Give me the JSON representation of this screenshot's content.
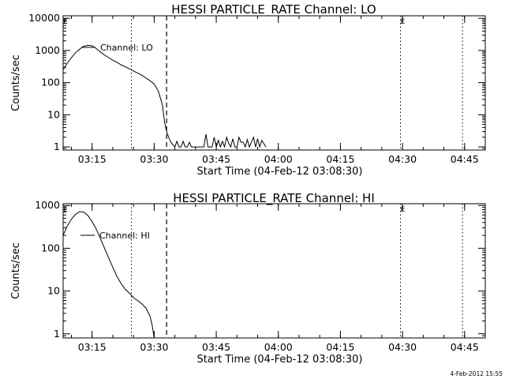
{
  "footer": {
    "timestamp": "4-Feb-2012 15:55"
  },
  "chart_data": [
    {
      "type": "line",
      "title": "HESSI PARTICLE_RATE Channel: LO",
      "xlabel": "Start Time (04-Feb-12 03:08:30)",
      "ylabel": "Counts/sec",
      "yscale": "log",
      "ylim": [
        0.8,
        12000
      ],
      "xlim": [
        "03:08",
        "04:50"
      ],
      "xticks": [
        "03:15",
        "03:30",
        "03:45",
        "04:00",
        "04:15",
        "04:30",
        "04:45"
      ],
      "yticks": [
        "1",
        "10",
        "100",
        "1000",
        "10000"
      ],
      "legend": "Channel: LO",
      "legend_placement": "top-left",
      "markers": [
        {
          "label": "E",
          "time": "03:08"
        },
        {
          "label": "E",
          "time": "04:29.5"
        }
      ],
      "vlines": [
        {
          "time": "03:24.5",
          "style": "dotted"
        },
        {
          "time": "03:33",
          "style": "dashed"
        },
        {
          "time": "04:29.5",
          "style": "dotted"
        },
        {
          "time": "04:44.5",
          "style": "dotted"
        }
      ],
      "series": [
        {
          "x": [
            "03:08",
            "03:09",
            "03:10",
            "03:11",
            "03:12",
            "03:13",
            "03:14",
            "03:15",
            "03:16",
            "03:17",
            "03:18",
            "03:19",
            "03:20",
            "03:21",
            "03:22",
            "03:23",
            "03:24",
            "03:25",
            "03:26",
            "03:27",
            "03:28",
            "03:29",
            "03:30",
            "03:31",
            "03:32",
            "03:32.5",
            "03:33",
            "03:33.5",
            "03:34",
            "03:35",
            "03:35.5",
            "03:36",
            "03:36.5",
            "03:37",
            "03:37.5",
            "03:38",
            "03:38.5",
            "03:39",
            "03:40",
            "03:41",
            "03:42",
            "03:42.5",
            "03:43",
            "03:44",
            "03:44.5",
            "03:45",
            "03:45.5",
            "03:46",
            "03:46.5",
            "03:47",
            "03:47.5",
            "03:48",
            "03:48.5",
            "03:49",
            "03:49.5",
            "03:50",
            "03:50.5",
            "03:51",
            "03:51.5",
            "03:52",
            "03:52.5",
            "03:53",
            "03:53.5",
            "03:54",
            "03:54.5",
            "03:55",
            "03:55.5",
            "03:56",
            "03:57"
          ],
          "y": [
            250,
            400,
            600,
            850,
            1100,
            1350,
            1450,
            1400,
            1150,
            900,
            720,
            600,
            500,
            430,
            360,
            310,
            270,
            230,
            200,
            170,
            140,
            115,
            90,
            55,
            20,
            6,
            3,
            2,
            1.4,
            1,
            1.5,
            1,
            1,
            1.5,
            1,
            1,
            1.4,
            1,
            1,
            1,
            1,
            2.5,
            1,
            1,
            2,
            1,
            1.6,
            1,
            1.5,
            1,
            2,
            1.3,
            1,
            1.8,
            1,
            1,
            2,
            1.4,
            1.4,
            1,
            1.7,
            1,
            1.4,
            2,
            1,
            1.8,
            1,
            1.6,
            1
          ]
        }
      ]
    },
    {
      "type": "line",
      "title": "HESSI PARTICLE_RATE Channel: HI",
      "xlabel": "Start Time (04-Feb-12 03:08:30)",
      "ylabel": "Counts/sec",
      "yscale": "log",
      "ylim": [
        0.8,
        1100
      ],
      "xlim": [
        "03:08",
        "04:50"
      ],
      "xticks": [
        "03:15",
        "03:30",
        "03:45",
        "04:00",
        "04:15",
        "04:30",
        "04:45"
      ],
      "yticks": [
        "1",
        "10",
        "100",
        "1000"
      ],
      "legend": "Channel: HI",
      "legend_placement": "top-left",
      "markers": [
        {
          "label": "E",
          "time": "03:08"
        },
        {
          "label": "E",
          "time": "04:29.5"
        }
      ],
      "vlines": [
        {
          "time": "03:24.5",
          "style": "dotted"
        },
        {
          "time": "03:33",
          "style": "dashed"
        },
        {
          "time": "04:29.5",
          "style": "dotted"
        },
        {
          "time": "04:44.5",
          "style": "dotted"
        }
      ],
      "series": [
        {
          "x": [
            "03:08",
            "03:09",
            "03:10",
            "03:11",
            "03:12",
            "03:13",
            "03:14",
            "03:15",
            "03:16",
            "03:17",
            "03:18",
            "03:19",
            "03:20",
            "03:21",
            "03:22",
            "03:23",
            "03:24",
            "03:25",
            "03:26",
            "03:27",
            "03:28",
            "03:29",
            "03:29.5",
            "03:30"
          ],
          "y": [
            200,
            330,
            480,
            620,
            720,
            700,
            580,
            420,
            280,
            170,
            100,
            60,
            36,
            22,
            15,
            11,
            9,
            7,
            6,
            5,
            4,
            2.6,
            1.6,
            0.8
          ]
        }
      ]
    }
  ]
}
